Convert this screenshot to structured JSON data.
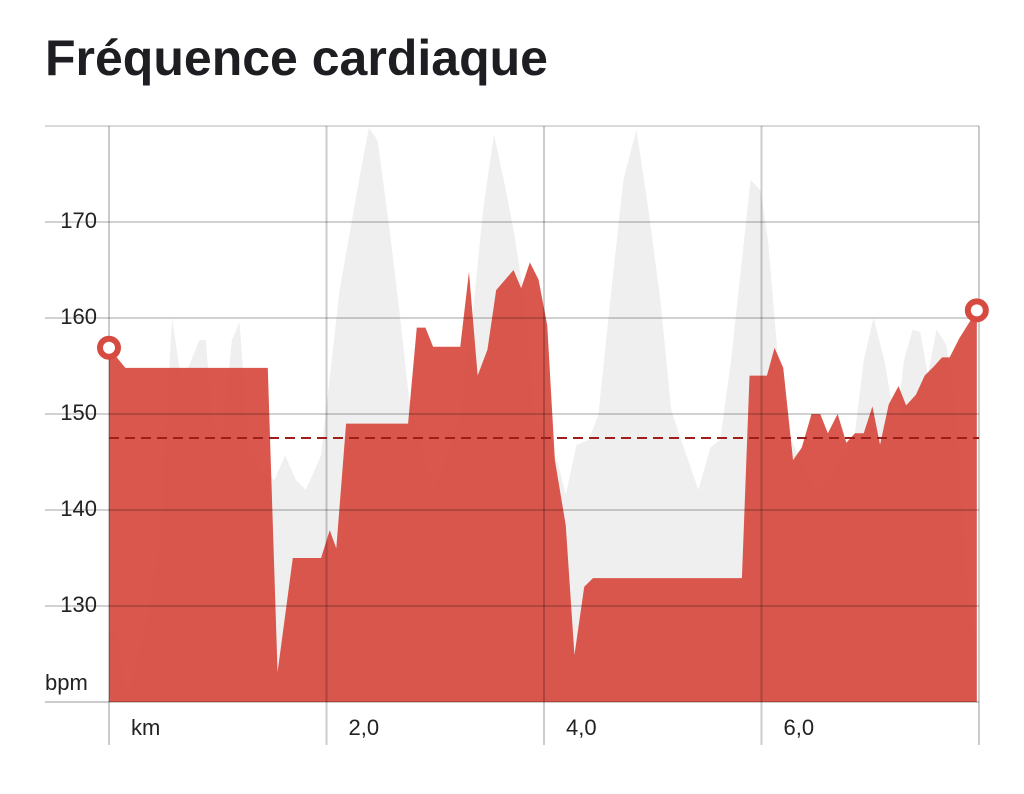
{
  "chart_data": {
    "type": "area",
    "title": "Fréquence cardiaque",
    "y_label": "bpm",
    "xlim": [
      0,
      8
    ],
    "ylim": [
      120,
      180
    ],
    "xticks": [
      {
        "value": 0,
        "label": "km"
      },
      {
        "value": 2,
        "label": "2,0"
      },
      {
        "value": 4,
        "label": "4,0"
      },
      {
        "value": 6,
        "label": "6,0"
      }
    ],
    "yticks": [
      130,
      140,
      150,
      160,
      170
    ],
    "grid": true,
    "average": 147.5,
    "average_color": "#9e1f1a",
    "series": [
      {
        "color": "#efefef",
        "x": [
          0,
          0.08,
          0.17,
          0.35,
          0.47,
          0.58,
          0.66,
          0.74,
          0.83,
          0.89,
          0.95,
          1.04,
          1.13,
          1.2,
          1.29,
          1.4,
          1.52,
          1.62,
          1.72,
          1.81,
          1.95,
          2.12,
          2.3,
          2.39,
          2.47,
          2.58,
          2.67,
          2.76,
          2.85,
          2.99,
          3.13,
          3.24,
          3.33,
          3.44,
          3.54,
          3.63,
          3.72,
          3.82,
          3.91,
          4.0,
          4.12,
          4.2,
          4.3,
          4.41,
          4.5,
          4.61,
          4.73,
          4.85,
          4.96,
          5.07,
          5.17,
          5.26,
          5.42,
          5.53,
          5.62,
          5.72,
          5.81,
          5.9,
          5.99,
          6.06,
          6.16,
          6.27,
          6.39,
          6.5,
          6.63,
          6.72,
          6.84,
          6.94,
          7.03,
          7.13,
          7.24,
          7.31,
          7.39,
          7.46,
          7.53,
          7.61,
          7.7,
          7.79,
          7.88,
          7.98
        ],
        "values": [
          127.7,
          127,
          120.2,
          128.5,
          136.9,
          160,
          153.8,
          155.1,
          157.7,
          157.7,
          149.4,
          147.3,
          157.7,
          159.6,
          145.7,
          144.2,
          143.1,
          145.7,
          143.1,
          142.1,
          145.7,
          162.9,
          174.4,
          179.8,
          178.5,
          169.2,
          160.8,
          151.5,
          147.3,
          142.1,
          146.3,
          150.4,
          158.8,
          171.3,
          179.1,
          174.4,
          169.2,
          161.9,
          150.4,
          147.3,
          145.2,
          141.6,
          146.8,
          147.3,
          149.9,
          161.9,
          174.4,
          179.6,
          171.3,
          161.9,
          150.4,
          147.3,
          142.1,
          146.5,
          147.3,
          155.6,
          165,
          174.4,
          173.3,
          168.1,
          154.6,
          147.3,
          144.7,
          142.1,
          143.1,
          145.7,
          146.3,
          155.6,
          160,
          155.6,
          148.3,
          155.6,
          158.8,
          158.5,
          154.1,
          158.8,
          157.2,
          150.4,
          132.7,
          124.9
        ]
      },
      {
        "color": "#d64a40",
        "x": [
          0,
          0.15,
          1.46,
          1.55,
          1.69,
          1.95,
          2.03,
          2.09,
          2.18,
          2.75,
          2.83,
          2.91,
          2.98,
          3.23,
          3.31,
          3.39,
          3.48,
          3.56,
          3.72,
          3.79,
          3.87,
          3.95,
          4.03,
          4.1,
          4.2,
          4.28,
          4.37,
          4.45,
          5.82,
          5.89,
          6.05,
          6.12,
          6.2,
          6.29,
          6.37,
          6.46,
          6.54,
          6.61,
          6.7,
          6.78,
          6.86,
          6.94,
          7.02,
          7.09,
          7.17,
          7.26,
          7.33,
          7.42,
          7.5,
          7.58,
          7.66,
          7.73,
          7.82,
          7.98
        ],
        "values": [
          156.9,
          154.8,
          154.8,
          123.1,
          135,
          135,
          137.9,
          136,
          149,
          149,
          159,
          159,
          157,
          157,
          164.8,
          154,
          156.7,
          162.9,
          165,
          163.1,
          165.8,
          164,
          159.2,
          145.2,
          138.4,
          124.9,
          132,
          132.9,
          132.9,
          154,
          154,
          156.9,
          154.8,
          145.2,
          146.5,
          150,
          150,
          148,
          150,
          147,
          148,
          148,
          150.8,
          146.8,
          151,
          152.9,
          150.9,
          152,
          154,
          154.9,
          155.9,
          155.9,
          157.9,
          160.8
        ]
      }
    ]
  }
}
